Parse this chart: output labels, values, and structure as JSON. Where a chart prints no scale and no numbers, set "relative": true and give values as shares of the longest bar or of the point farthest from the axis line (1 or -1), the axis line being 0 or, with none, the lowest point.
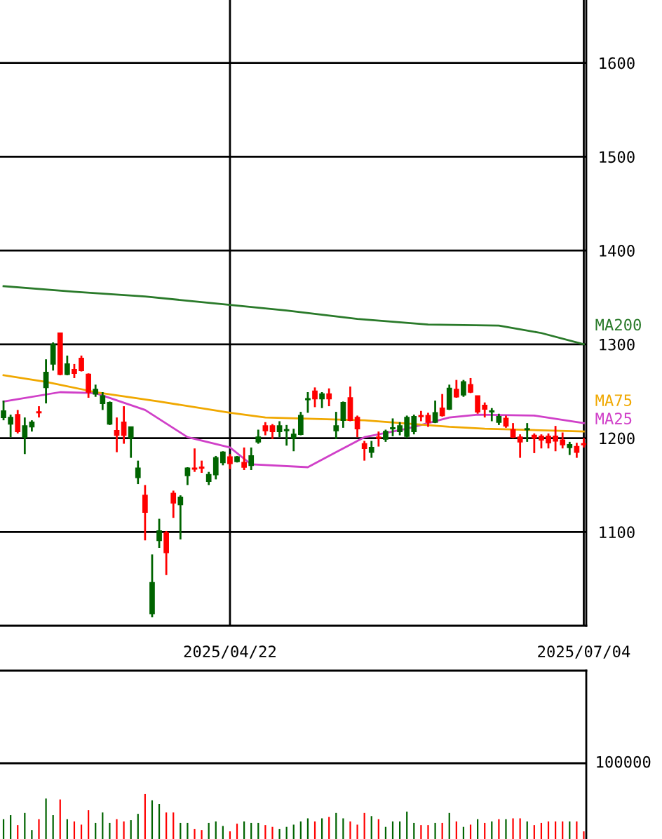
{
  "chart_data": [
    {
      "type": "candlestick",
      "categories": [
        null,
        null,
        null,
        null,
        null,
        null,
        null,
        null,
        null,
        null,
        null,
        null,
        null,
        null,
        null,
        null,
        null,
        null,
        null,
        null,
        null,
        null,
        null,
        null,
        null,
        null,
        null,
        null,
        null,
        null,
        null,
        null,
        "2025/04/22",
        null,
        null,
        null,
        null,
        null,
        null,
        null,
        null,
        null,
        null,
        null,
        null,
        null,
        null,
        null,
        null,
        null,
        null,
        null,
        null,
        null,
        null,
        null,
        null,
        null,
        null,
        null,
        null,
        null,
        null,
        null,
        null,
        null,
        null,
        null,
        null,
        null,
        null,
        null,
        null,
        null,
        null,
        null,
        null,
        null,
        null,
        null,
        null,
        null,
        "2025/07/04"
      ],
      "ohlc": [
        [
          1222,
          1240,
          1219,
          1229
        ],
        [
          1215,
          1225,
          1201,
          1222
        ],
        [
          1225,
          1230,
          1205,
          1207
        ],
        [
          1201,
          1222,
          1183,
          1213
        ],
        [
          1212,
          1219,
          1207,
          1217
        ],
        [
          1228,
          1234,
          1222,
          1227
        ],
        [
          1254,
          1284,
          1237,
          1270
        ],
        [
          1279,
          1302,
          1272,
          1300
        ],
        [
          1312,
          1312,
          1267,
          1268
        ],
        [
          1268,
          1288,
          1267,
          1279
        ],
        [
          1273,
          1279,
          1264,
          1269
        ],
        [
          1285,
          1288,
          1271,
          1272
        ],
        [
          1268,
          1269,
          1243,
          1249
        ],
        [
          1247,
          1257,
          1244,
          1252
        ],
        [
          1237,
          1249,
          1230,
          1245
        ],
        [
          1215,
          1239,
          1214,
          1238
        ],
        [
          1208,
          1222,
          1185,
          1203
        ],
        [
          1217,
          1234,
          1194,
          1203
        ],
        [
          1200,
          1212,
          1179,
          1212
        ],
        [
          1158,
          1176,
          1151,
          1168
        ],
        [
          1139,
          1150,
          1091,
          1121
        ],
        [
          1013,
          1076,
          1009,
          1046
        ],
        [
          1091,
          1114,
          1083,
          1101
        ],
        [
          1099,
          1101,
          1054,
          1078
        ],
        [
          1141,
          1144,
          1115,
          1131
        ],
        [
          1129,
          1139,
          1092,
          1137
        ],
        [
          1160,
          1169,
          1150,
          1168
        ],
        [
          1168,
          1189,
          1164,
          1167
        ],
        [
          1169,
          1176,
          1163,
          1168
        ],
        [
          1154,
          1164,
          1150,
          1161
        ],
        [
          1161,
          1181,
          1156,
          1179
        ],
        [
          1174,
          1186,
          1171,
          1185
        ],
        [
          1180,
          1183,
          1167,
          1173
        ],
        [
          1175,
          1181,
          1174,
          1180
        ],
        [
          1174,
          1190,
          1166,
          1169
        ],
        [
          1171,
          1190,
          1166,
          1181
        ],
        [
          1196,
          1209,
          1194,
          1201
        ],
        [
          1213,
          1217,
          1203,
          1208
        ],
        [
          1213,
          1215,
          1199,
          1207
        ],
        [
          1207,
          1218,
          1201,
          1213
        ],
        [
          1208,
          1214,
          1192,
          1209
        ],
        [
          1200,
          1210,
          1186,
          1204
        ],
        [
          1204,
          1228,
          1203,
          1224
        ],
        [
          1241,
          1249,
          1227,
          1242
        ],
        [
          1250,
          1254,
          1233,
          1242
        ],
        [
          1242,
          1249,
          1232,
          1247
        ],
        [
          1247,
          1253,
          1234,
          1242
        ],
        [
          1208,
          1228,
          1199,
          1213
        ],
        [
          1219,
          1239,
          1211,
          1238
        ],
        [
          1243,
          1255,
          1218,
          1219
        ],
        [
          1222,
          1224,
          1201,
          1210
        ],
        [
          1194,
          1197,
          1176,
          1189
        ],
        [
          1185,
          1197,
          1179,
          1190
        ],
        [
          1201,
          1207,
          1191,
          1200
        ],
        [
          1199,
          1209,
          1196,
          1207
        ],
        [
          1210,
          1221,
          1202,
          1211
        ],
        [
          1207,
          1217,
          1203,
          1213
        ],
        [
          1202,
          1224,
          1200,
          1222
        ],
        [
          1207,
          1225,
          1204,
          1223
        ],
        [
          1224,
          1229,
          1218,
          1223
        ],
        [
          1224,
          1227,
          1212,
          1217
        ],
        [
          1217,
          1240,
          1216,
          1227
        ],
        [
          1232,
          1247,
          1223,
          1224
        ],
        [
          1231,
          1257,
          1230,
          1253
        ],
        [
          1252,
          1262,
          1243,
          1244
        ],
        [
          1246,
          1262,
          1244,
          1260
        ],
        [
          1257,
          1264,
          1248,
          1249
        ],
        [
          1245,
          1245,
          1226,
          1228
        ],
        [
          1235,
          1238,
          1222,
          1231
        ],
        [
          1228,
          1232,
          1218,
          1229
        ],
        [
          1217,
          1226,
          1214,
          1223
        ],
        [
          1221,
          1224,
          1211,
          1213
        ],
        [
          1209,
          1216,
          1200,
          1201
        ],
        [
          1201,
          1204,
          1179,
          1196
        ],
        [
          1209,
          1216,
          1196,
          1210
        ],
        [
          1203,
          1205,
          1184,
          1200
        ],
        [
          1202,
          1204,
          1189,
          1198
        ],
        [
          1202,
          1205,
          1189,
          1195
        ],
        [
          1202,
          1213,
          1186,
          1197
        ],
        [
          1198,
          1206,
          1189,
          1193
        ],
        [
          1190,
          1196,
          1182,
          1193
        ],
        [
          1191,
          1195,
          1179,
          1185
        ],
        [
          1194,
          1200,
          1190,
          1193
        ]
      ],
      "colors": [
        "#006400",
        "#006400",
        "#ff0000",
        "#006400",
        "#006400",
        "#ff0000",
        "#006400",
        "#006400",
        "#ff0000",
        "#006400",
        "#ff0000",
        "#ff0000",
        "#ff0000",
        "#006400",
        "#006400",
        "#006400",
        "#ff0000",
        "#ff0000",
        "#006400",
        "#006400",
        "#ff0000",
        "#006400",
        "#006400",
        "#ff0000",
        "#ff0000",
        "#006400",
        "#006400",
        "#ff0000",
        "#ff0000",
        "#006400",
        "#006400",
        "#006400",
        "#ff0000",
        "#006400",
        "#ff0000",
        "#006400",
        "#006400",
        "#ff0000",
        "#ff0000",
        "#006400",
        "#006400",
        "#006400",
        "#006400",
        "#006400",
        "#ff0000",
        "#006400",
        "#ff0000",
        "#006400",
        "#006400",
        "#ff0000",
        "#ff0000",
        "#ff0000",
        "#006400",
        "#ff0000",
        "#006400",
        "#006400",
        "#006400",
        "#006400",
        "#006400",
        "#ff0000",
        "#ff0000",
        "#006400",
        "#ff0000",
        "#006400",
        "#ff0000",
        "#006400",
        "#ff0000",
        "#ff0000",
        "#ff0000",
        "#006400",
        "#006400",
        "#ff0000",
        "#ff0000",
        "#ff0000",
        "#006400",
        "#ff0000",
        "#ff0000",
        "#ff0000",
        "#ff0000",
        "#ff0000",
        "#006400",
        "#ff0000",
        "#ff0000"
      ],
      "series": [
        {
          "name": "MA200",
          "type": "line",
          "color": "#2a7a2a",
          "values": [
            1362,
            null,
            null,
            null,
            null,
            null,
            null,
            null,
            null,
            null,
            1356,
            null,
            null,
            null,
            null,
            null,
            null,
            null,
            null,
            null,
            1351,
            null,
            null,
            null,
            null,
            null,
            null,
            null,
            null,
            null,
            null,
            null,
            1342,
            null,
            null,
            null,
            null,
            null,
            null,
            null,
            1336,
            null,
            null,
            null,
            null,
            null,
            null,
            null,
            null,
            null,
            1327,
            null,
            null,
            null,
            null,
            null,
            null,
            null,
            null,
            null,
            1321,
            null,
            null,
            null,
            null,
            null,
            null,
            null,
            null,
            null,
            1320,
            null,
            null,
            null,
            null,
            null,
            1312,
            null,
            null,
            null,
            null,
            null,
            1300
          ]
        },
        {
          "name": "MA25",
          "type": "line",
          "color": "#d040c8",
          "values": [
            1239,
            null,
            null,
            null,
            null,
            null,
            null,
            null,
            1249,
            null,
            null,
            null,
            null,
            1248,
            null,
            null,
            null,
            null,
            null,
            null,
            1230,
            null,
            null,
            null,
            null,
            null,
            1201,
            null,
            null,
            null,
            null,
            null,
            1190,
            null,
            null,
            1172,
            null,
            null,
            null,
            null,
            null,
            null,
            null,
            1169,
            null,
            null,
            null,
            1185,
            null,
            null,
            null,
            1201,
            null,
            null,
            null,
            null,
            null,
            1210,
            null,
            null,
            null,
            null,
            null,
            1222,
            null,
            null,
            null,
            1225,
            null,
            null,
            null,
            null,
            null,
            null,
            null,
            1224,
            null,
            null,
            null,
            null,
            null,
            null,
            1216
          ]
        },
        {
          "name": "MA75",
          "type": "line",
          "color": "#f0a800",
          "values": [
            1267,
            null,
            null,
            null,
            null,
            null,
            1260,
            null,
            null,
            null,
            null,
            null,
            null,
            1249,
            null,
            null,
            null,
            null,
            null,
            null,
            null,
            null,
            1239,
            null,
            null,
            null,
            null,
            null,
            null,
            null,
            null,
            null,
            1227,
            null,
            null,
            null,
            null,
            1222,
            null,
            null,
            null,
            null,
            null,
            null,
            null,
            null,
            null,
            null,
            null,
            null,
            null,
            1219,
            null,
            null,
            null,
            null,
            null,
            null,
            null,
            null,
            null,
            null,
            null,
            1212,
            null,
            null,
            null,
            null,
            1210,
            null,
            null,
            null,
            null,
            null,
            null,
            null,
            null,
            null,
            null,
            null,
            null,
            null,
            1207
          ]
        }
      ],
      "ylim": [
        1000,
        1667
      ],
      "yticks": [
        1100,
        1200,
        1300,
        1400,
        1500,
        1600
      ],
      "grid": true
    },
    {
      "type": "bar",
      "relative": true,
      "categories": [
        null,
        null,
        null,
        null,
        null,
        null,
        null,
        null,
        null,
        null,
        null,
        null,
        null,
        null,
        null,
        null,
        null,
        null,
        null,
        null,
        null,
        null,
        null,
        null,
        null,
        null,
        null,
        null,
        null,
        null,
        null,
        null,
        null,
        null,
        null,
        null,
        null,
        null,
        null,
        null,
        null,
        null,
        null,
        null,
        null,
        null,
        null,
        null,
        null,
        null,
        null,
        null,
        null,
        null,
        null,
        null,
        null,
        null,
        null,
        null,
        null,
        null,
        null,
        null,
        null,
        null,
        null,
        null,
        null,
        null,
        null,
        null,
        null,
        null,
        null,
        null,
        null,
        null,
        null,
        null,
        null,
        null,
        null
      ],
      "values": [
        0.44,
        0.53,
        0.31,
        0.58,
        0.2,
        0.44,
        0.9,
        0.53,
        0.88,
        0.44,
        0.39,
        0.32,
        0.64,
        0.36,
        0.59,
        0.36,
        0.44,
        0.39,
        0.42,
        0.56,
        1,
        0.86,
        0.78,
        0.59,
        0.59,
        0.36,
        0.36,
        0.22,
        0.2,
        0.36,
        0.39,
        0.29,
        0.17,
        0.34,
        0.39,
        0.36,
        0.36,
        0.31,
        0.27,
        0.22,
        0.27,
        0.32,
        0.39,
        0.46,
        0.39,
        0.46,
        0.49,
        0.58,
        0.46,
        0.39,
        0.32,
        0.58,
        0.51,
        0.44,
        0.27,
        0.39,
        0.39,
        0.61,
        0.36,
        0.31,
        0.31,
        0.36,
        0.36,
        0.58,
        0.39,
        0.27,
        0.32,
        0.44,
        0.36,
        0.39,
        0.44,
        0.44,
        0.46,
        0.46,
        0.39,
        0.31,
        0.36,
        0.39,
        0.39,
        0.39,
        0.39,
        0.39,
        0.17
      ],
      "colors": [
        "#006400",
        "#006400",
        "#ff0000",
        "#006400",
        "#006400",
        "#ff0000",
        "#006400",
        "#006400",
        "#ff0000",
        "#006400",
        "#ff0000",
        "#ff0000",
        "#ff0000",
        "#006400",
        "#006400",
        "#006400",
        "#ff0000",
        "#ff0000",
        "#006400",
        "#006400",
        "#ff0000",
        "#006400",
        "#006400",
        "#ff0000",
        "#ff0000",
        "#006400",
        "#006400",
        "#ff0000",
        "#ff0000",
        "#006400",
        "#006400",
        "#006400",
        "#ff0000",
        "#ff0000",
        "#006400",
        "#006400",
        "#006400",
        "#ff0000",
        "#ff0000",
        "#006400",
        "#006400",
        "#006400",
        "#006400",
        "#006400",
        "#ff0000",
        "#006400",
        "#ff0000",
        "#006400",
        "#006400",
        "#ff0000",
        "#ff0000",
        "#ff0000",
        "#006400",
        "#ff0000",
        "#006400",
        "#006400",
        "#006400",
        "#006400",
        "#006400",
        "#ff0000",
        "#ff0000",
        "#006400",
        "#ff0000",
        "#006400",
        "#ff0000",
        "#006400",
        "#ff0000",
        "#006400",
        "#ff0000",
        "#006400",
        "#ff0000",
        "#006400",
        "#ff0000",
        "#ff0000",
        "#006400",
        "#ff0000",
        "#ff0000",
        "#ff0000",
        "#ff0000",
        "#ff0000",
        "#006400",
        "#ff0000",
        "#ff0000"
      ],
      "annotations": [
        "100000"
      ]
    }
  ]
}
